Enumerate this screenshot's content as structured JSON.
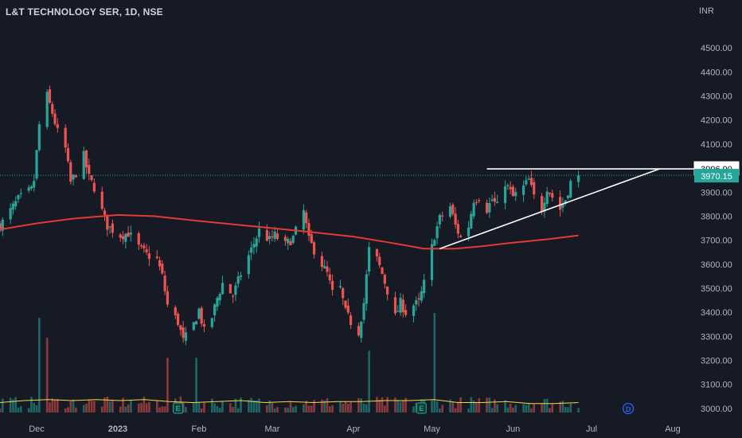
{
  "header": {
    "title": "L&T TECHNOLOGY SER, 1D, NSE",
    "currency": "INR"
  },
  "colors": {
    "up": "#26a69a",
    "down": "#ef5350",
    "sma": "#e53935",
    "volume_ma": "#f5d742",
    "trendline": "#ffffff",
    "last_price_badge": "#26a69a",
    "background": "#161a25",
    "grid_text": "#b2b5be"
  },
  "chart_data": {
    "type": "candlestick",
    "title": "L&T TECHNOLOGY SER, 1D, NSE",
    "y_unit": "INR",
    "ylim": [
      2950,
      4600
    ],
    "y_ticks": [
      3000,
      3100,
      3200,
      3300,
      3400,
      3500,
      3600,
      3700,
      3800,
      3900,
      4000,
      4100,
      4200,
      4300,
      4400,
      4500
    ],
    "y_tick_labels": [
      "3000.00",
      "3100.00",
      "3200.00",
      "3300.00",
      "3400.00",
      "3500.00",
      "3600.00",
      "3700.00",
      "3800.00",
      "3900.00",
      "4000.00",
      "4100.00",
      "4200.00",
      "4300.00",
      "4400.00",
      "4500.00"
    ],
    "x_range": [
      "2022-11-17",
      "2023-08-08"
    ],
    "x_ticks": [
      {
        "date": "2022-12-01",
        "label": "Dec"
      },
      {
        "date": "2023-01-01",
        "label": "2023"
      },
      {
        "date": "2023-02-01",
        "label": "Feb"
      },
      {
        "date": "2023-03-01",
        "label": "Mar"
      },
      {
        "date": "2023-04-01",
        "label": "Apr"
      },
      {
        "date": "2023-05-01",
        "label": "May"
      },
      {
        "date": "2023-06-01",
        "label": "Jun"
      },
      {
        "date": "2023-07-01",
        "label": "Jul"
      },
      {
        "date": "2023-08-01",
        "label": "Aug"
      }
    ],
    "price_path": [
      [
        "2022-11-17",
        3760
      ],
      [
        "2022-11-24",
        3870
      ],
      [
        "2022-11-29",
        3910
      ],
      [
        "2022-11-30",
        3950
      ],
      [
        "2022-12-02",
        4180
      ],
      [
        "2022-12-05",
        4300
      ],
      [
        "2022-12-07",
        4230
      ],
      [
        "2022-12-09",
        4150
      ],
      [
        "2022-12-12",
        4080
      ],
      [
        "2022-12-14",
        3940
      ],
      [
        "2022-12-16",
        3980
      ],
      [
        "2022-12-19",
        4050
      ],
      [
        "2022-12-21",
        3960
      ],
      [
        "2022-12-23",
        3920
      ],
      [
        "2022-12-26",
        3820
      ],
      [
        "2022-12-28",
        3760
      ],
      [
        "2023-01-02",
        3720
      ],
      [
        "2023-01-05",
        3730
      ],
      [
        "2023-01-09",
        3670
      ],
      [
        "2023-01-12",
        3640
      ],
      [
        "2023-01-16",
        3620
      ],
      [
        "2023-01-18",
        3550
      ],
      [
        "2023-01-20",
        3430
      ],
      [
        "2023-01-24",
        3360
      ],
      [
        "2023-01-26",
        3280
      ],
      [
        "2023-01-30",
        3350
      ],
      [
        "2023-02-01",
        3410
      ],
      [
        "2023-02-03",
        3320
      ],
      [
        "2023-02-06",
        3380
      ],
      [
        "2023-02-08",
        3460
      ],
      [
        "2023-02-10",
        3520
      ],
      [
        "2023-02-14",
        3470
      ],
      [
        "2023-02-17",
        3560
      ],
      [
        "2023-02-21",
        3660
      ],
      [
        "2023-02-24",
        3740
      ],
      [
        "2023-02-28",
        3700
      ],
      [
        "2023-03-02",
        3720
      ],
      [
        "2023-03-06",
        3680
      ],
      [
        "2023-03-09",
        3710
      ],
      [
        "2023-03-13",
        3820
      ],
      [
        "2023-03-15",
        3700
      ],
      [
        "2023-03-17",
        3660
      ],
      [
        "2023-03-20",
        3600
      ],
      [
        "2023-03-22",
        3560
      ],
      [
        "2023-03-24",
        3480
      ],
      [
        "2023-03-27",
        3500
      ],
      [
        "2023-03-29",
        3400
      ],
      [
        "2023-03-31",
        3360
      ],
      [
        "2023-04-03",
        3320
      ],
      [
        "2023-04-05",
        3440
      ],
      [
        "2023-04-07",
        3660
      ],
      [
        "2023-04-10",
        3620
      ],
      [
        "2023-04-12",
        3560
      ],
      [
        "2023-04-14",
        3490
      ],
      [
        "2023-04-17",
        3380
      ],
      [
        "2023-04-19",
        3440
      ],
      [
        "2023-04-21",
        3400
      ],
      [
        "2023-04-24",
        3430
      ],
      [
        "2023-04-26",
        3440
      ],
      [
        "2023-04-28",
        3520
      ],
      [
        "2023-05-02",
        3720
      ],
      [
        "2023-05-04",
        3790
      ],
      [
        "2023-05-08",
        3840
      ],
      [
        "2023-05-10",
        3760
      ],
      [
        "2023-05-12",
        3710
      ],
      [
        "2023-05-15",
        3760
      ],
      [
        "2023-05-17",
        3870
      ],
      [
        "2023-05-19",
        3880
      ],
      [
        "2023-05-22",
        3830
      ],
      [
        "2023-05-24",
        3870
      ],
      [
        "2023-05-26",
        3840
      ],
      [
        "2023-05-29",
        3940
      ],
      [
        "2023-06-01",
        3880
      ],
      [
        "2023-06-05",
        3920
      ],
      [
        "2023-06-07",
        3950
      ],
      [
        "2023-06-09",
        3880
      ],
      [
        "2023-06-12",
        3830
      ],
      [
        "2023-06-14",
        3920
      ],
      [
        "2023-06-16",
        3880
      ],
      [
        "2023-06-19",
        3830
      ],
      [
        "2023-06-21",
        3870
      ],
      [
        "2023-06-23",
        3940
      ],
      [
        "2023-06-26",
        3970.15
      ]
    ],
    "sma": [
      [
        "2022-11-17",
        3745
      ],
      [
        "2022-12-01",
        3770
      ],
      [
        "2022-12-15",
        3790
      ],
      [
        "2023-01-01",
        3805
      ],
      [
        "2023-01-15",
        3800
      ],
      [
        "2023-02-01",
        3780
      ],
      [
        "2023-02-15",
        3765
      ],
      [
        "2023-03-01",
        3750
      ],
      [
        "2023-03-15",
        3735
      ],
      [
        "2023-04-01",
        3715
      ],
      [
        "2023-04-15",
        3690
      ],
      [
        "2023-04-28",
        3665
      ],
      [
        "2023-05-10",
        3665
      ],
      [
        "2023-05-20",
        3675
      ],
      [
        "2023-06-01",
        3690
      ],
      [
        "2023-06-15",
        3705
      ],
      [
        "2023-06-26",
        3720
      ]
    ],
    "volume_ma_ratio": [
      0.1,
      0.12,
      0.13,
      0.12,
      0.13,
      0.12,
      0.13,
      0.11,
      0.1,
      0.11,
      0.12,
      0.1,
      0.11,
      0.1,
      0.11,
      0.11,
      0.12,
      0.12,
      0.13,
      0.1,
      0.1,
      0.11,
      0.09,
      0.09,
      0.1
    ],
    "volume_spikes": [
      {
        "date": "2022-12-02",
        "ratio": 0.95,
        "up": true
      },
      {
        "date": "2022-12-05",
        "ratio": 0.75,
        "up": false
      },
      {
        "date": "2023-01-20",
        "ratio": 0.55,
        "up": false
      },
      {
        "date": "2023-01-31",
        "ratio": 0.55,
        "up": true
      },
      {
        "date": "2023-04-07",
        "ratio": 0.62,
        "up": true
      },
      {
        "date": "2023-05-02",
        "ratio": 1.0,
        "up": true
      }
    ],
    "earnings_markers": [
      {
        "date": "2023-01-24",
        "label": "E"
      },
      {
        "date": "2023-04-27",
        "label": "E"
      },
      {
        "date": "2023-07-15",
        "label": "D"
      }
    ],
    "resistance_line": {
      "start_date": "2023-05-22",
      "end_date": "2023-08-08",
      "price": 3996.9
    },
    "rising_trendline": {
      "start": [
        "2023-05-04",
        3665
      ],
      "end": [
        "2023-07-27",
        3996.9
      ]
    },
    "resistance_label": "3996.90",
    "last_price": 3970.15,
    "last_price_label": "3970.15"
  }
}
